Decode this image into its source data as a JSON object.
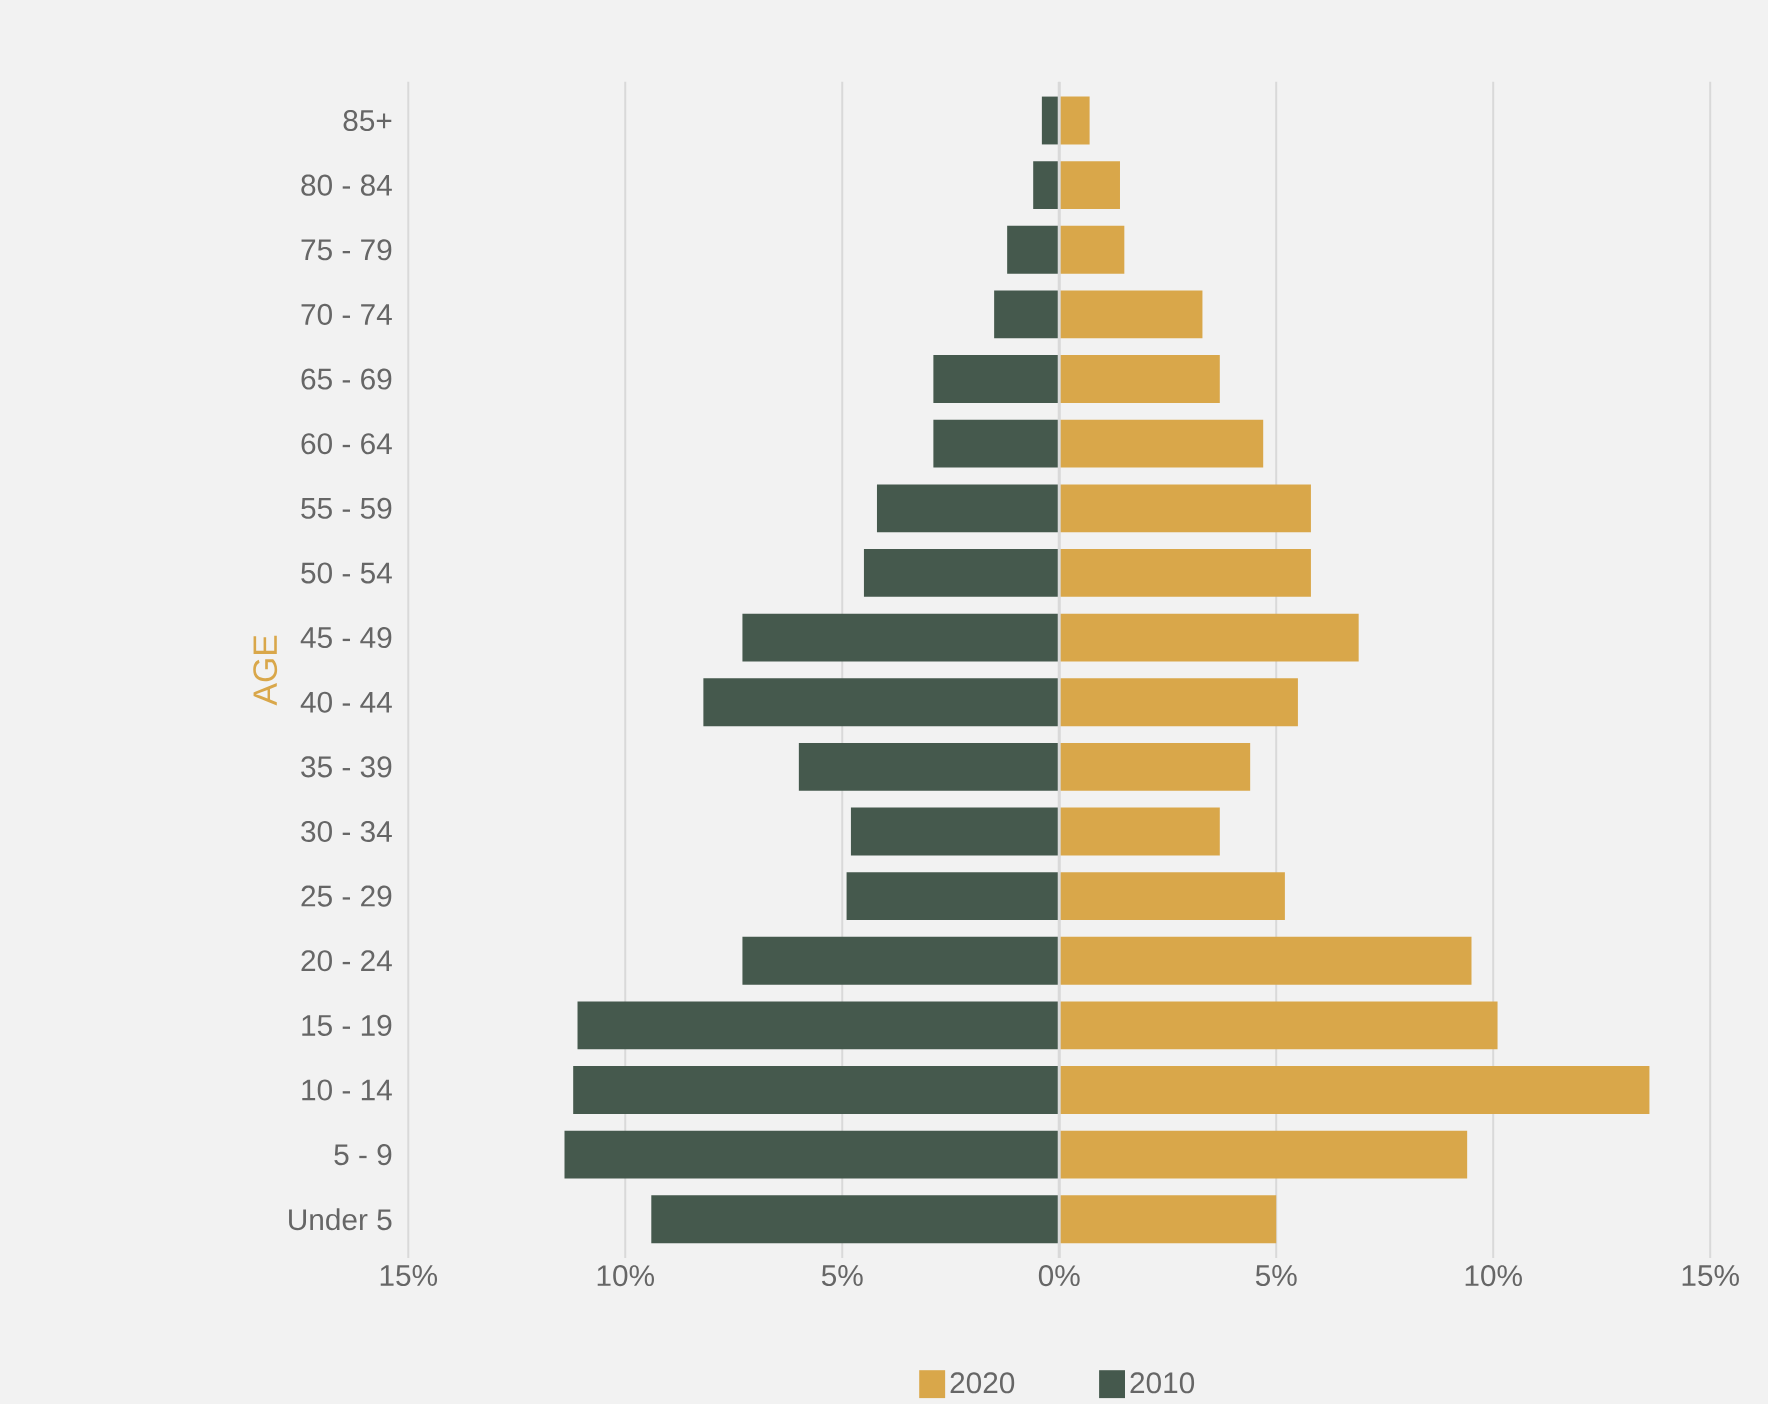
{
  "chart_data": {
    "type": "bar",
    "orientation": "horizontal",
    "ylabel": "AGE",
    "categories": [
      "85+",
      "80 - 84",
      "75 - 79",
      "70 - 74",
      "65 - 69",
      "60 - 64",
      "55 - 59",
      "50 - 54",
      "45 - 49",
      "40 - 44",
      "35 - 39",
      "30 - 34",
      "25 - 29",
      "20 - 24",
      "15 - 19",
      "10 - 14",
      "5 - 9",
      "Under 5"
    ],
    "series": [
      {
        "name": "2010",
        "color": "#45594d",
        "values": [
          -0.4,
          -0.6,
          -1.2,
          -1.5,
          -2.9,
          -2.9,
          -4.2,
          -4.5,
          -7.3,
          -8.2,
          -6.0,
          -4.8,
          -4.9,
          -7.3,
          -11.1,
          -11.2,
          -11.4,
          -9.4
        ]
      },
      {
        "name": "2020",
        "color": "#d9a74a",
        "values": [
          0.7,
          1.4,
          1.5,
          3.3,
          3.7,
          4.7,
          5.8,
          5.8,
          6.9,
          5.5,
          4.4,
          3.7,
          5.2,
          9.5,
          10.1,
          13.6,
          9.4,
          5.0
        ]
      }
    ],
    "xlim": [
      -15,
      15
    ],
    "xticks": [
      {
        "value": -15,
        "label": "15%"
      },
      {
        "value": -10,
        "label": "10%"
      },
      {
        "value": -5,
        "label": "5%"
      },
      {
        "value": 0,
        "label": "0%"
      },
      {
        "value": 5,
        "label": "5%"
      },
      {
        "value": 10,
        "label": "10%"
      },
      {
        "value": 15,
        "label": "15%"
      }
    ],
    "grid": "x",
    "legend": "bottom",
    "stacked": true
  }
}
